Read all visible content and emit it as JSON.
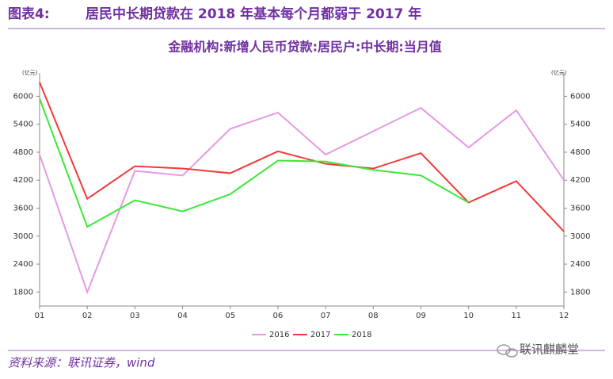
{
  "header": {
    "label": "图表4:",
    "text": "居民中长期贷款在 2018 年基本每个月都弱于 2017 年"
  },
  "chart_data": {
    "type": "line",
    "title": "金融机构:新增人民币贷款:居民户:中长期:当月值",
    "y_unit": "(亿元)",
    "y2_unit": "(亿元)",
    "categories": [
      "01",
      "02",
      "03",
      "04",
      "05",
      "06",
      "07",
      "08",
      "09",
      "10",
      "11",
      "12"
    ],
    "series": [
      {
        "name": "2016",
        "color": "#e49ae4",
        "values": [
          4750,
          1800,
          4400,
          4300,
          5300,
          5650,
          4750,
          5250,
          5750,
          4900,
          5700,
          4200
        ]
      },
      {
        "name": "2017",
        "color": "#f23a3a",
        "values": [
          6300,
          3800,
          4500,
          4450,
          4350,
          4820,
          4550,
          4450,
          4780,
          3720,
          4180,
          3100
        ]
      },
      {
        "name": "2018",
        "color": "#3ae83a",
        "values": [
          5950,
          3200,
          3770,
          3530,
          3900,
          4620,
          4600,
          4420,
          4300,
          3720,
          null,
          null
        ]
      }
    ],
    "ylim": [
      1500,
      6500
    ],
    "yticks": [
      1800,
      2400,
      3000,
      3600,
      4200,
      4800,
      5400,
      6000
    ],
    "y2lim": [
      1500,
      6500
    ],
    "y2ticks": [
      1800,
      2400,
      3000,
      3600,
      4200,
      4800,
      5400,
      6000
    ],
    "legend": "bottom"
  },
  "source": "资料来源：联讯证券，wind",
  "watermark": "联讯麒麟堂"
}
